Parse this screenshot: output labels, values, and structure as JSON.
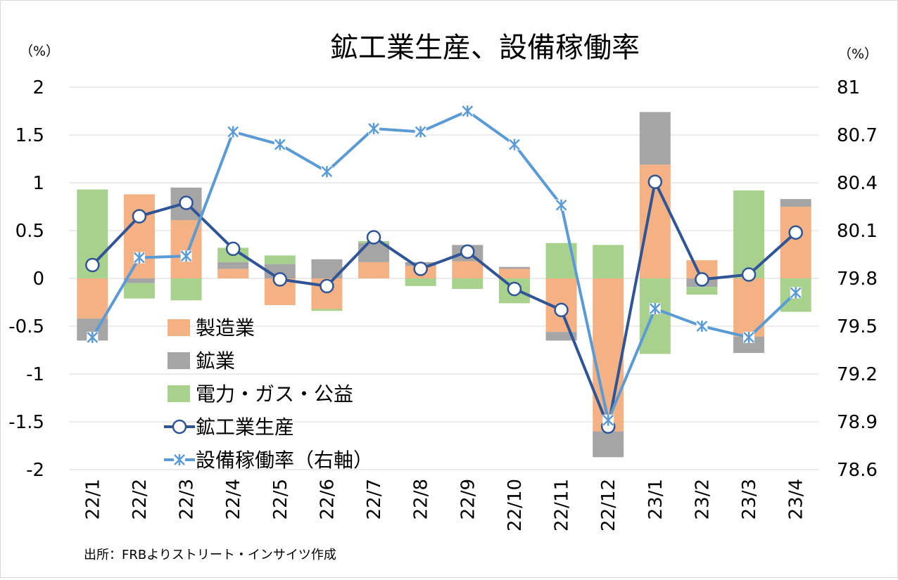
{
  "chart_data": {
    "type": "bar",
    "title": "鉱工業生産、設備稼働率",
    "left_unit": "（%）",
    "right_unit": "（%）",
    "source": "出所：FRBよりストリート・インサイツ作成",
    "categories": [
      "22/1",
      "22/2",
      "22/3",
      "22/4",
      "22/5",
      "22/6",
      "22/7",
      "22/8",
      "22/9",
      "22/10",
      "22/11",
      "22/12",
      "23/1",
      "23/2",
      "23/3",
      "23/4"
    ],
    "ylim": [
      -2,
      2
    ],
    "yticks": [
      "-2",
      "-1.5",
      "-1",
      "-0.5",
      "0",
      "0.5",
      "1",
      "1.5",
      "2"
    ],
    "y2lim": [
      78.6,
      81
    ],
    "y2ticks": [
      "78.6",
      "78.9",
      "79.2",
      "79.5",
      "79.8",
      "80.1",
      "80.4",
      "80.7",
      "81"
    ],
    "grid": true,
    "legend_position": "center-left",
    "series": [
      {
        "name": "製造業",
        "kind": "stacked-bar",
        "color": "#F4B183",
        "values": [
          -0.42,
          0.88,
          0.61,
          0.1,
          -0.28,
          -0.32,
          0.17,
          0.13,
          0.18,
          0.1,
          -0.56,
          -1.6,
          1.19,
          0.19,
          -0.61,
          0.75
        ]
      },
      {
        "name": "鉱業",
        "kind": "stacked-bar",
        "color": "#A5A5A5",
        "values": [
          -0.23,
          -0.05,
          0.34,
          0.07,
          0.15,
          0.2,
          0.2,
          0.04,
          0.17,
          0.02,
          -0.09,
          -0.27,
          0.55,
          -0.09,
          -0.17,
          0.08
        ]
      },
      {
        "name": "電力・ガス・公益",
        "kind": "stacked-bar",
        "color": "#A9D18E",
        "values": [
          0.93,
          -0.16,
          -0.23,
          0.15,
          0.09,
          -0.02,
          0.02,
          -0.08,
          -0.11,
          -0.26,
          0.37,
          0.35,
          -0.79,
          -0.08,
          0.92,
          -0.35
        ]
      },
      {
        "name": "鉱工業生産",
        "kind": "line",
        "marker": "circle",
        "color": "#2F5597",
        "values": [
          0.14,
          0.65,
          0.79,
          0.31,
          -0.01,
          -0.08,
          0.43,
          0.1,
          0.28,
          -0.11,
          -0.33,
          -1.55,
          1.01,
          -0.01,
          0.04,
          0.48
        ]
      },
      {
        "name": "設備稼働率（右軸）",
        "kind": "line",
        "axis": "right",
        "marker": "asterisk",
        "color": "#5B9BD5",
        "values": [
          79.43,
          79.93,
          79.94,
          80.72,
          80.64,
          80.47,
          80.74,
          80.72,
          80.85,
          80.64,
          80.26,
          78.91,
          79.61,
          79.5,
          79.43,
          79.71
        ]
      }
    ]
  }
}
